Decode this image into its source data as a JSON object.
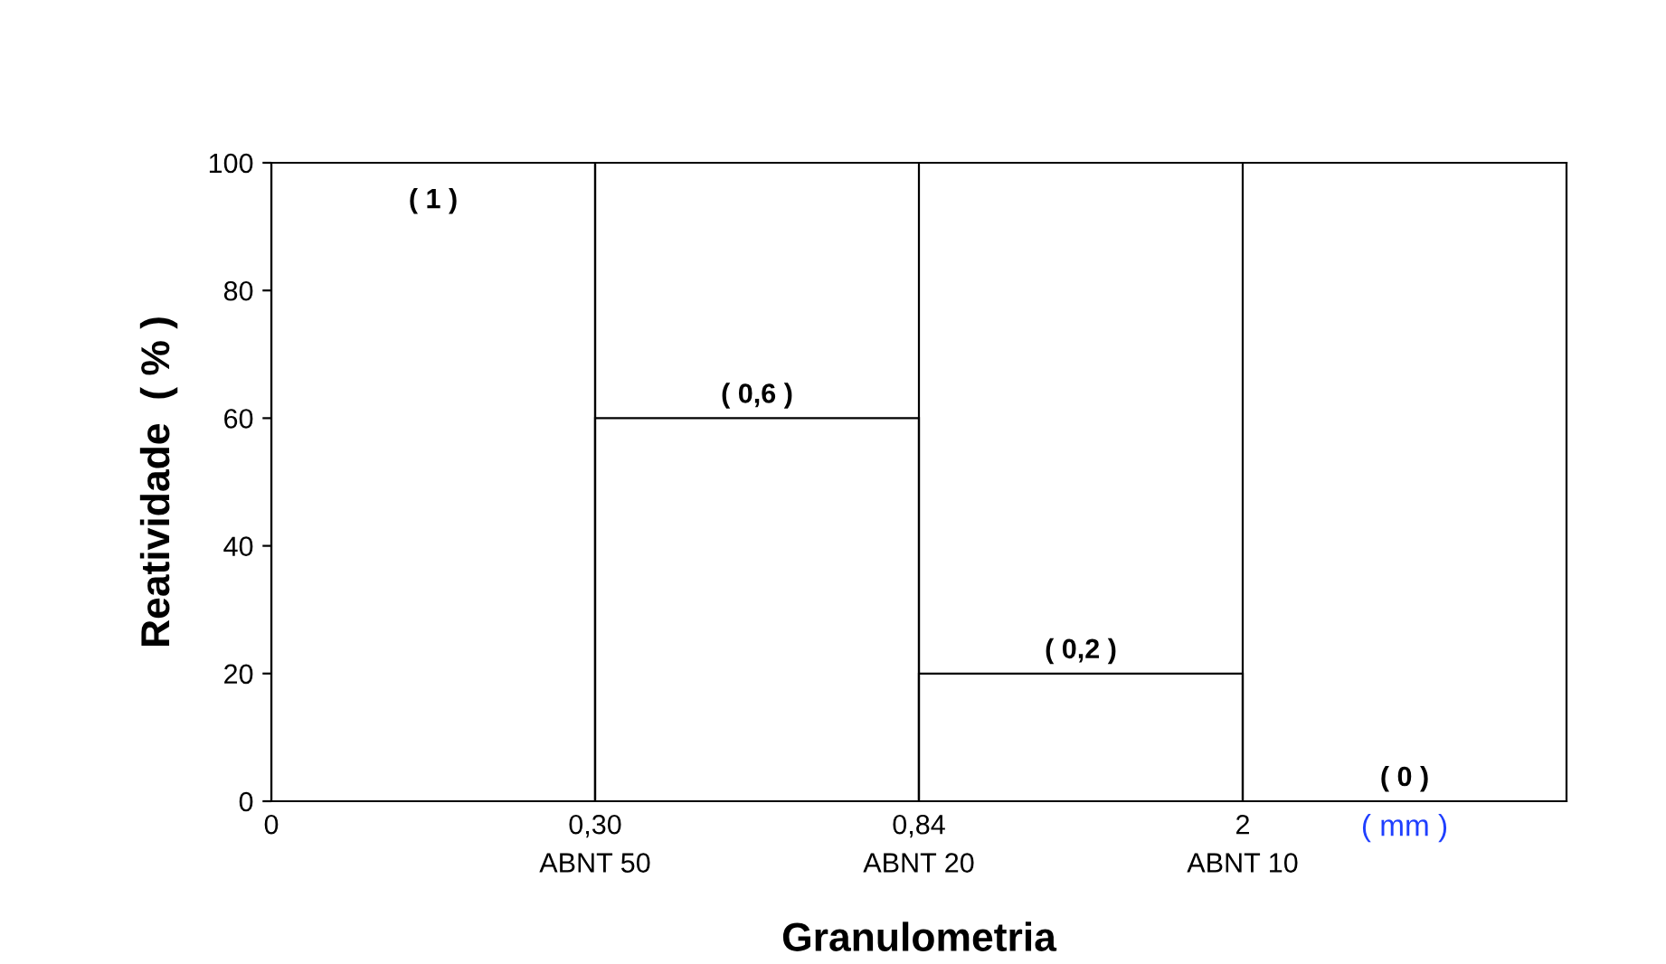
{
  "chart_data": {
    "type": "bar",
    "xlabel": "Granulometria",
    "ylabel": "Reatividade  ( % )",
    "categories": [
      null,
      null,
      null,
      null
    ],
    "values": [
      100,
      60,
      20,
      0
    ],
    "color": "#ffffff",
    "ylim": [
      0,
      100
    ],
    "yticks": [
      0,
      20,
      40,
      60,
      80,
      100
    ],
    "grid": "x",
    "annotations": [
      "0",
      "0,30",
      "0,84",
      "2",
      "ABNT 50",
      "ABNT 20",
      "ABNT 10",
      "( mm )",
      "( 1 )",
      "( 0,6 )",
      "( 0,2 )",
      "( 0 )"
    ]
  }
}
